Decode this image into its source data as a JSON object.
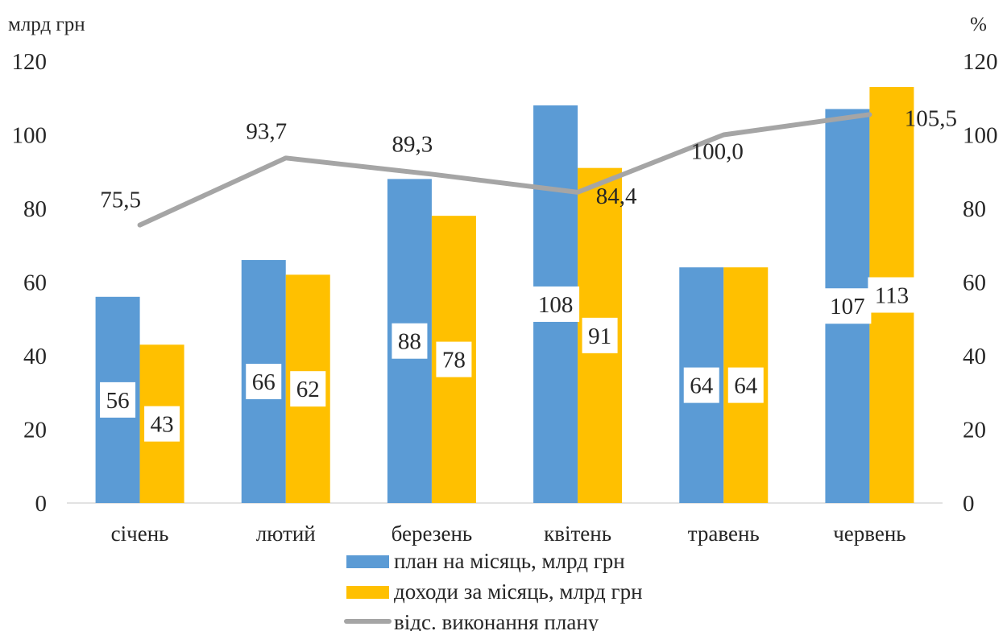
{
  "chart_data": {
    "type": "bar",
    "y_left_label": "млрд грн",
    "y_right_label": "%",
    "ylim_left": [
      0,
      120
    ],
    "ylim_right": [
      0,
      120
    ],
    "yticks_left": [
      "0",
      "20",
      "40",
      "60",
      "80",
      "100",
      "120"
    ],
    "yticks_right": [
      "0",
      "20",
      "40",
      "60",
      "80",
      "100",
      "120"
    ],
    "grid": false,
    "legend_position": "bottom",
    "categories": [
      "січень",
      "лютий",
      "березень",
      "квітень",
      "травень",
      "червень"
    ],
    "series": [
      {
        "name": "план на місяць, млрд грн",
        "type": "bar",
        "axis": "left",
        "color": "#5B9BD5",
        "values": [
          56,
          66,
          88,
          108,
          64,
          107
        ],
        "labels": [
          "56",
          "66",
          "88",
          "108",
          "64",
          "107"
        ]
      },
      {
        "name": "доходи за місяць, млрд грн",
        "type": "bar",
        "axis": "left",
        "color": "#FFC000",
        "values": [
          43,
          62,
          78,
          91,
          64,
          113
        ],
        "labels": [
          "43",
          "62",
          "78",
          "91",
          "64",
          "113"
        ]
      },
      {
        "name": "відс. виконання плану",
        "type": "line",
        "axis": "right",
        "color": "#A5A5A5",
        "values": [
          75.5,
          93.7,
          89.3,
          84.4,
          100.0,
          105.5
        ],
        "labels": [
          "75,5",
          "93,7",
          "89,3",
          "84,4",
          "100,0",
          "105,5"
        ]
      }
    ]
  }
}
